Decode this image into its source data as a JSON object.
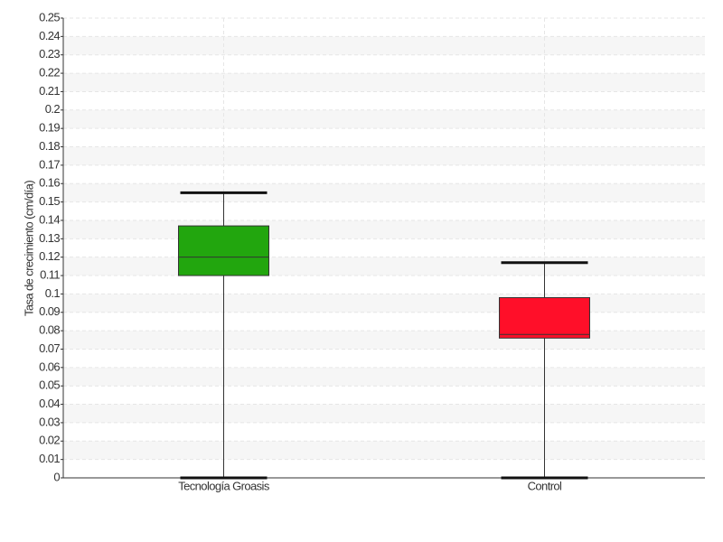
{
  "chart_data": {
    "type": "box",
    "y_label": "Tasa de crecimiento (cm/día)",
    "categories": [
      "Tecnología Groasis",
      "Control"
    ],
    "boxes": [
      {
        "whisker_low": 0,
        "q1": 0.11,
        "median": 0.12,
        "q3": 0.137,
        "whisker_high": 0.155,
        "color": "#22a60e"
      },
      {
        "whisker_low": 0,
        "q1": 0.076,
        "median": 0.078,
        "q3": 0.098,
        "whisker_high": 0.117,
        "color": "#ff0f29"
      }
    ],
    "ylim": [
      0,
      0.25
    ],
    "yticks": [
      0,
      0.01,
      0.02,
      0.03,
      0.04,
      0.05,
      0.06,
      0.07,
      0.08,
      0.09,
      0.1,
      0.11,
      0.12,
      0.13,
      0.14,
      0.15,
      0.16,
      0.17,
      0.18,
      0.19,
      0.2,
      0.21,
      0.22,
      0.23,
      0.24,
      0.25
    ],
    "grid": true
  }
}
